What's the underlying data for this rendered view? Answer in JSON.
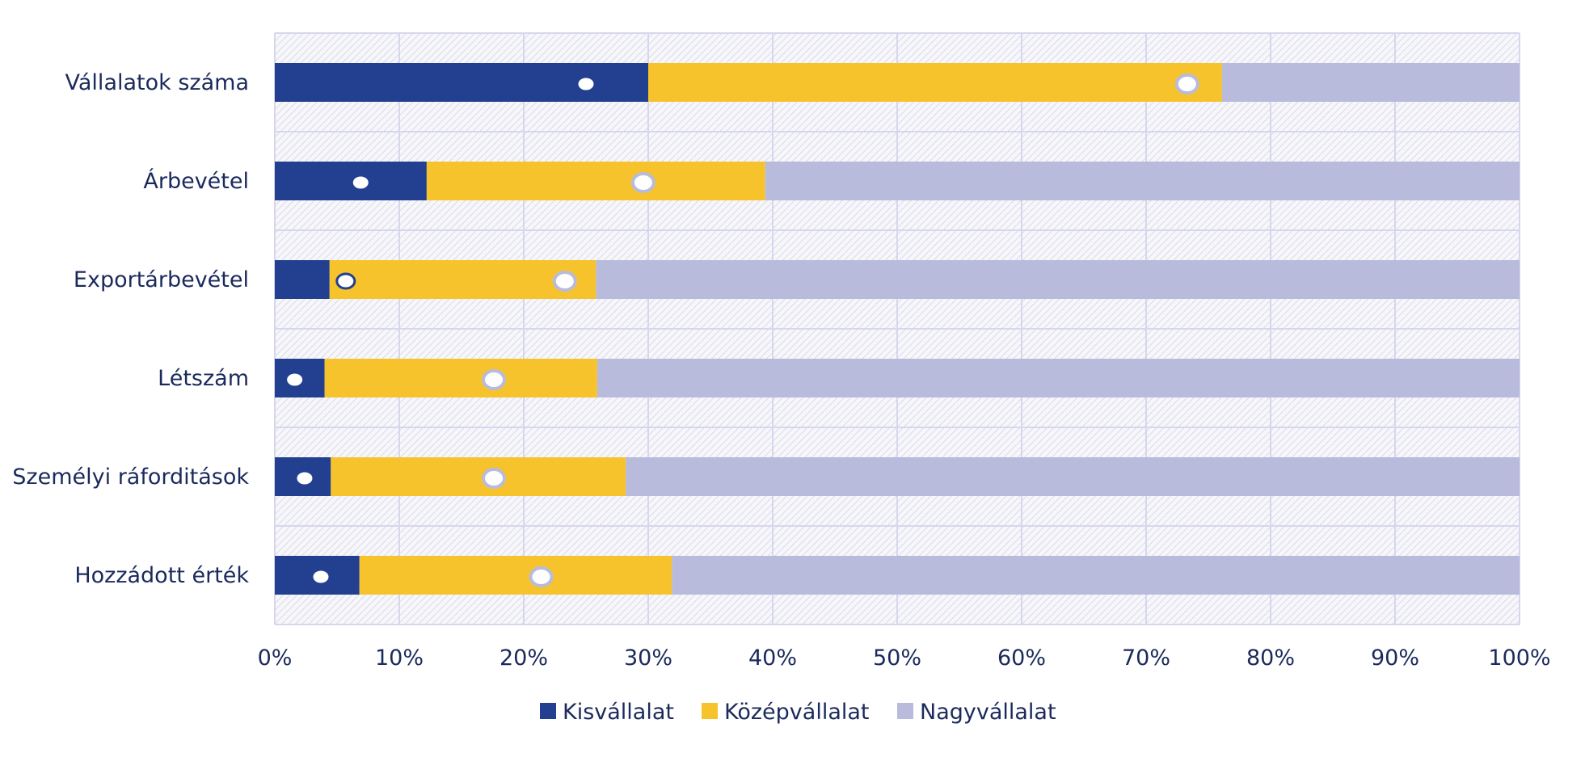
{
  "chart_data": {
    "type": "bar",
    "orientation": "horizontal",
    "stacked": true,
    "percent": true,
    "categories": [
      "Vállalatok száma",
      "Árbevétel",
      "Exportárbevétel",
      "Létszám",
      "Személyi ráforditások",
      "Hozzádott érték"
    ],
    "series": [
      {
        "name": "Kisvállalat",
        "color": "#233f8f",
        "values": [
          30,
          12.2,
          4.4,
          4,
          4.5,
          6.8
        ]
      },
      {
        "name": "Középvállalat",
        "color": "#f6c32d",
        "values": [
          46.1,
          27.2,
          21.4,
          21.9,
          23.7,
          25.1
        ]
      },
      {
        "name": "Nagyvállalat",
        "color": "#b8bbdb",
        "values": [
          23.9,
          60.6,
          74.2,
          74.1,
          71.8,
          68.1
        ]
      }
    ],
    "markers": [
      {
        "name": "Kisvállalat",
        "values": [
          25,
          6.9,
          5.7,
          1.6,
          2.4,
          3.7
        ]
      },
      {
        "name": "Középvállalat",
        "values": [
          73.3,
          29.6,
          23.3,
          17.6,
          17.6,
          21.4
        ]
      }
    ],
    "xaxis": {
      "ticks": [
        "0%",
        "10%",
        "20%",
        "30%",
        "40%",
        "50%",
        "60%",
        "70%",
        "80%",
        "90%",
        "100%"
      ],
      "xlim": [
        0,
        100
      ]
    },
    "legend": {
      "position": "bottom",
      "items": [
        "Kisvállalat",
        "Középvállalat",
        "Nagyvállalat"
      ]
    },
    "grid": true
  }
}
